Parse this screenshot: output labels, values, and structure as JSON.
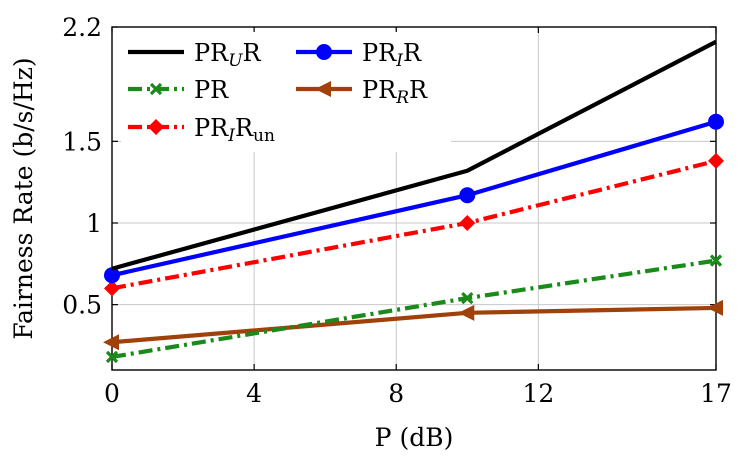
{
  "chart_data": {
    "type": "line",
    "xlabel": "P (dB)",
    "ylabel": "Fairness Rate (b/s/Hz)",
    "xlim": [
      0,
      17
    ],
    "ylim": [
      0.1,
      2.2
    ],
    "x_ticks": [
      0,
      4,
      8,
      12,
      17
    ],
    "y_ticks": [
      0.5,
      1,
      1.5,
      2.2
    ],
    "x_tick_labels": [
      "0",
      "4",
      "8",
      "12",
      "17"
    ],
    "y_tick_labels": [
      "0.5",
      "1",
      "1.5",
      "2.2"
    ],
    "grid": true,
    "legend_placement": "top-left",
    "x": [
      0,
      10,
      17
    ],
    "series": [
      {
        "name": "PR_U R",
        "color": "#000000",
        "dash": "solid",
        "marker": "none",
        "values": [
          0.72,
          1.32,
          2.11
        ]
      },
      {
        "name": "PR_I R",
        "color": "#0000ff",
        "dash": "solid",
        "marker": "circle",
        "values": [
          0.68,
          1.17,
          1.62
        ]
      },
      {
        "name": "PR",
        "color": "#1a8a1a",
        "dash": "dashdot",
        "marker": "x",
        "values": [
          0.18,
          0.54,
          0.77
        ]
      },
      {
        "name": "PR_R R",
        "color": "#a0400a",
        "dash": "solid",
        "marker": "triangle-left",
        "values": [
          0.27,
          0.45,
          0.48
        ]
      },
      {
        "name": "PR_I R_un",
        "color": "#ff0000",
        "dash": "dashdot",
        "marker": "diamond",
        "values": [
          0.6,
          1.0,
          1.38
        ]
      }
    ],
    "legend_rows": [
      [
        "PR_U R",
        "PR_I R"
      ],
      [
        "PR",
        "PR_R R"
      ],
      [
        "PR_I R_un"
      ]
    ],
    "legend_labels": {
      "PR_U R": {
        "base": "PR",
        "sub": "U",
        "tail": "R",
        "tail_sub": ""
      },
      "PR_I R": {
        "base": "PR",
        "sub": "I",
        "tail": "R",
        "tail_sub": ""
      },
      "PR": {
        "base": "PR",
        "sub": "",
        "tail": "",
        "tail_sub": ""
      },
      "PR_R R": {
        "base": "PR",
        "sub": "R",
        "tail": "R",
        "tail_sub": ""
      },
      "PR_I R_un": {
        "base": "PR",
        "sub": "I",
        "tail": "R",
        "tail_sub": "un"
      }
    }
  }
}
